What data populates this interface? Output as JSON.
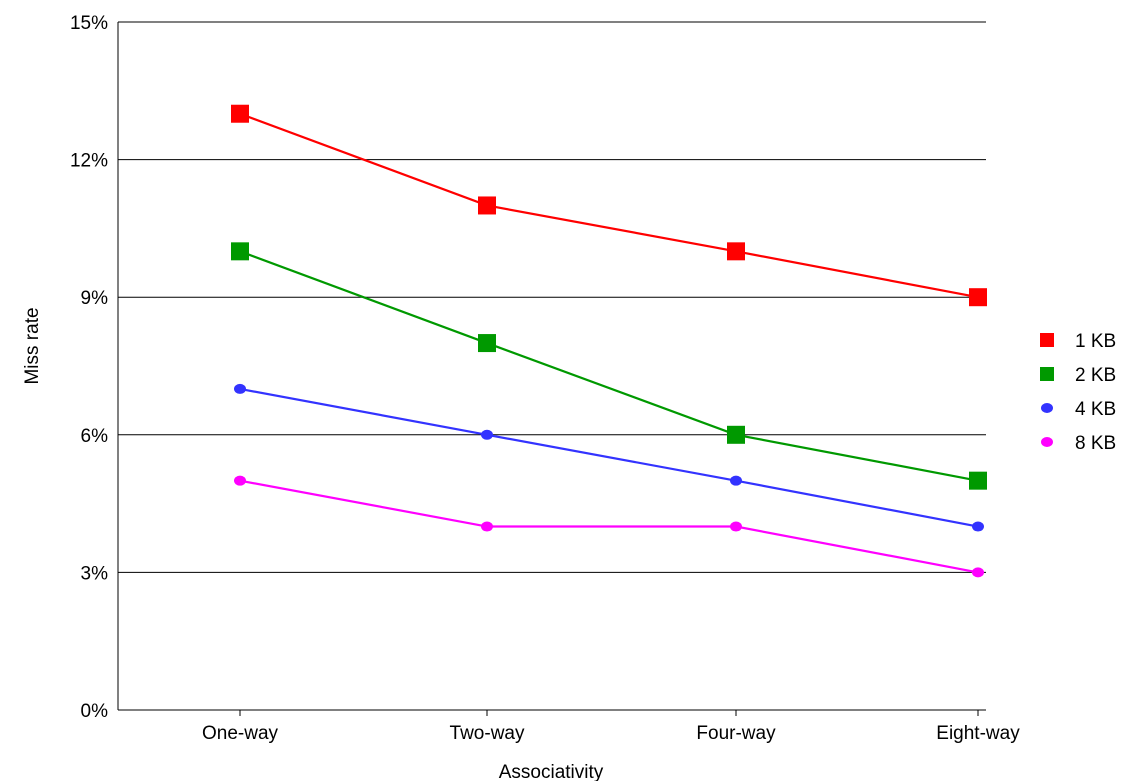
{
  "chart_data": {
    "type": "line",
    "title": "",
    "xlabel": "Associativity",
    "ylabel": "Miss rate",
    "categories": [
      "One-way",
      "Two-way",
      "Four-way",
      "Eight-way"
    ],
    "ylim": [
      0,
      15
    ],
    "yticks": [
      0,
      3,
      6,
      9,
      12,
      15
    ],
    "ytick_labels": [
      "0%",
      "3%",
      "6%",
      "9%",
      "12%",
      "15%"
    ],
    "grid": "horizontal",
    "legend_position": "right",
    "series": [
      {
        "name": "1 KB",
        "values": [
          13,
          11,
          10,
          9
        ],
        "color": "#ff0000",
        "marker": "square"
      },
      {
        "name": "2 KB",
        "values": [
          10,
          8,
          6,
          5
        ],
        "color": "#009900",
        "marker": "square"
      },
      {
        "name": "4 KB",
        "values": [
          7,
          6,
          5,
          4
        ],
        "color": "#3333ff",
        "marker": "circle"
      },
      {
        "name": "8 KB",
        "values": [
          5,
          4,
          4,
          3
        ],
        "color": "#ff00ff",
        "marker": "circle"
      }
    ]
  }
}
